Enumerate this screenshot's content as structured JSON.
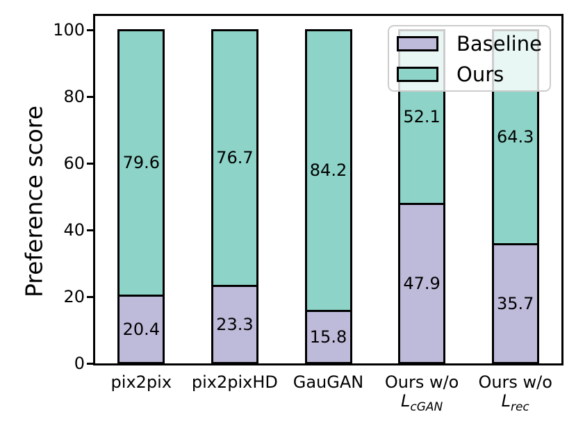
{
  "chart_data": {
    "type": "bar",
    "stacked": true,
    "title": "",
    "xlabel": "",
    "ylabel": "Preference score",
    "categories": [
      "pix2pix",
      "pix2pixHD",
      "GauGAN",
      "Ours w/o L_cGAN",
      "Ours w/o L_rec"
    ],
    "category_labels": [
      {
        "line1": "pix2pix"
      },
      {
        "line1": "pix2pixHD"
      },
      {
        "line1": "GauGAN"
      },
      {
        "line1": "Ours w/o",
        "math_symbol": "L",
        "math_subscript": "cGAN"
      },
      {
        "line1": "Ours w/o",
        "math_symbol": "L",
        "math_subscript": "rec"
      }
    ],
    "series": [
      {
        "name": "Baseline",
        "color": "#bebada",
        "values": [
          20.4,
          23.3,
          15.8,
          47.9,
          35.7
        ]
      },
      {
        "name": "Ours",
        "color": "#8dd3c7",
        "values": [
          79.6,
          76.7,
          84.2,
          52.1,
          64.3
        ]
      }
    ],
    "bar_edge_color": "#000000",
    "value_labels_shown": true,
    "yticks": [
      0,
      20,
      40,
      60,
      80,
      100
    ],
    "ylim": [
      0,
      104.6
    ],
    "grid": false,
    "legend": {
      "position": "upper right",
      "entries": [
        "Baseline",
        "Ours"
      ],
      "border_color": "#cccccc",
      "background": "rgba(255,255,255,0.8)"
    }
  }
}
